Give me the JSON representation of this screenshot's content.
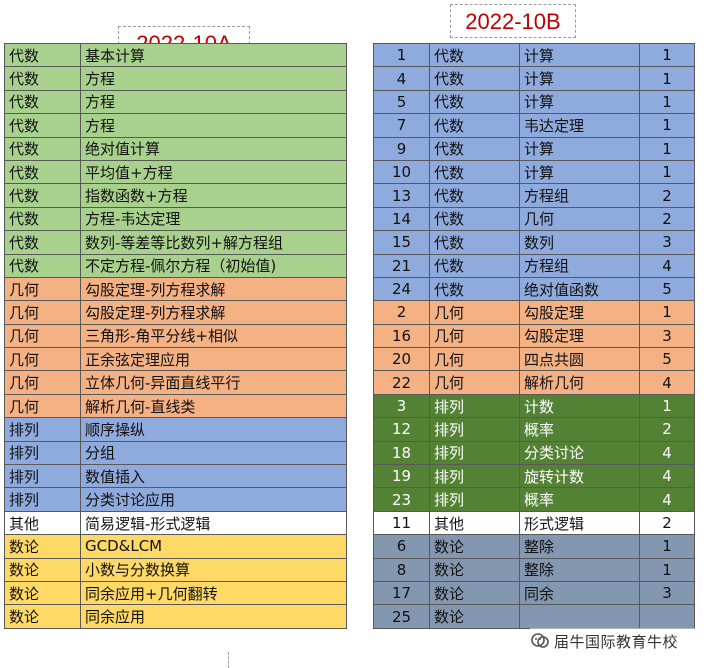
{
  "title_a": "2022-10A",
  "title_b": "2022-10B",
  "watermark": "届牛国际教育牛校",
  "colors": {
    "algebra": "#a9d18e",
    "geometry": "#f4b183",
    "combinatorics": "#8faadc",
    "other": "#ffffff",
    "number_theory": "#ffd966",
    "b_blue": "#8faadc",
    "b_orange": "#f4b183",
    "b_green": "#548235",
    "b_white": "#ffffff",
    "b_slate": "#8497b0"
  },
  "table_a": [
    {
      "cat": "代数",
      "topic": "基本计算",
      "color": "#a9d18e"
    },
    {
      "cat": "代数",
      "topic": "方程",
      "color": "#a9d18e"
    },
    {
      "cat": "代数",
      "topic": "方程",
      "color": "#a9d18e"
    },
    {
      "cat": "代数",
      "topic": "方程",
      "color": "#a9d18e"
    },
    {
      "cat": "代数",
      "topic": "绝对值计算",
      "color": "#a9d18e"
    },
    {
      "cat": "代数",
      "topic": "平均值+方程",
      "color": "#a9d18e"
    },
    {
      "cat": "代数",
      "topic": "指数函数+方程",
      "color": "#a9d18e"
    },
    {
      "cat": "代数",
      "topic": "方程-韦达定理",
      "color": "#a9d18e"
    },
    {
      "cat": "代数",
      "topic": "数列-等差等比数列+解方程组",
      "color": "#a9d18e"
    },
    {
      "cat": "代数",
      "topic": "不定方程-佩尔方程（初始值)",
      "color": "#a9d18e"
    },
    {
      "cat": "几何",
      "topic": "勾股定理-列方程求解",
      "color": "#f4b183"
    },
    {
      "cat": "几何",
      "topic": "勾股定理-列方程求解",
      "color": "#f4b183"
    },
    {
      "cat": "几何",
      "topic": "三角形-角平分线+相似",
      "color": "#f4b183"
    },
    {
      "cat": "几何",
      "topic": "正余弦定理应用",
      "color": "#f4b183"
    },
    {
      "cat": "几何",
      "topic": "立体几何-异面直线平行",
      "color": "#f4b183"
    },
    {
      "cat": "几何",
      "topic": "解析几何-直线类",
      "color": "#f4b183"
    },
    {
      "cat": "排列",
      "topic": "顺序操纵",
      "color": "#8faadc"
    },
    {
      "cat": "排列",
      "topic": "分组",
      "color": "#8faadc"
    },
    {
      "cat": "排列",
      "topic": "数值插入",
      "color": "#8faadc"
    },
    {
      "cat": "排列",
      "topic": "分类讨论应用",
      "color": "#8faadc"
    },
    {
      "cat": "其他",
      "topic": "简易逻辑-形式逻辑",
      "color": "#ffffff"
    },
    {
      "cat": "数论",
      "topic": "GCD&LCM",
      "color": "#ffd966"
    },
    {
      "cat": "数论",
      "topic": "小数与分数换算",
      "color": "#ffd966"
    },
    {
      "cat": "数论",
      "topic": "同余应用+几何翻转",
      "color": "#ffd966"
    },
    {
      "cat": "数论",
      "topic": "同余应用",
      "color": "#ffd966"
    }
  ],
  "table_b": [
    {
      "num": "1",
      "cat": "代数",
      "topic": "计算",
      "level": "1",
      "color": "#8faadc",
      "dark": false
    },
    {
      "num": "4",
      "cat": "代数",
      "topic": "计算",
      "level": "1",
      "color": "#8faadc",
      "dark": false
    },
    {
      "num": "5",
      "cat": "代数",
      "topic": "计算",
      "level": "1",
      "color": "#8faadc",
      "dark": false
    },
    {
      "num": "7",
      "cat": "代数",
      "topic": "韦达定理",
      "level": "1",
      "color": "#8faadc",
      "dark": false
    },
    {
      "num": "9",
      "cat": "代数",
      "topic": "计算",
      "level": "1",
      "color": "#8faadc",
      "dark": false
    },
    {
      "num": "10",
      "cat": "代数",
      "topic": "计算",
      "level": "1",
      "color": "#8faadc",
      "dark": false
    },
    {
      "num": "13",
      "cat": "代数",
      "topic": "方程组",
      "level": "2",
      "color": "#8faadc",
      "dark": false
    },
    {
      "num": "14",
      "cat": "代数",
      "topic": "几何",
      "level": "2",
      "color": "#8faadc",
      "dark": false
    },
    {
      "num": "15",
      "cat": "代数",
      "topic": "数列",
      "level": "3",
      "color": "#8faadc",
      "dark": false
    },
    {
      "num": "21",
      "cat": "代数",
      "topic": "方程组",
      "level": "4",
      "color": "#8faadc",
      "dark": false
    },
    {
      "num": "24",
      "cat": "代数",
      "topic": "绝对值函数",
      "level": "5",
      "color": "#8faadc",
      "dark": false
    },
    {
      "num": "2",
      "cat": "几何",
      "topic": "勾股定理",
      "level": "1",
      "color": "#f4b183",
      "dark": false
    },
    {
      "num": "16",
      "cat": "几何",
      "topic": "勾股定理",
      "level": "3",
      "color": "#f4b183",
      "dark": false
    },
    {
      "num": "20",
      "cat": "几何",
      "topic": "四点共圆",
      "level": "5",
      "color": "#f4b183",
      "dark": false
    },
    {
      "num": "22",
      "cat": "几何",
      "topic": "解析几何",
      "level": "4",
      "color": "#f4b183",
      "dark": false
    },
    {
      "num": "3",
      "cat": "排列",
      "topic": "计数",
      "level": "1",
      "color": "#548235",
      "dark": true
    },
    {
      "num": "12",
      "cat": "排列",
      "topic": "概率",
      "level": "2",
      "color": "#548235",
      "dark": true
    },
    {
      "num": "18",
      "cat": "排列",
      "topic": "分类讨论",
      "level": "4",
      "color": "#548235",
      "dark": true
    },
    {
      "num": "19",
      "cat": "排列",
      "topic": "旋转计数",
      "level": "4",
      "color": "#548235",
      "dark": true
    },
    {
      "num": "23",
      "cat": "排列",
      "topic": "概率",
      "level": "4",
      "color": "#548235",
      "dark": true
    },
    {
      "num": "11",
      "cat": "其他",
      "topic": "形式逻辑",
      "level": "2",
      "color": "#ffffff",
      "dark": false
    },
    {
      "num": "6",
      "cat": "数论",
      "topic": "整除",
      "level": "1",
      "color": "#8497b0",
      "dark": false
    },
    {
      "num": "8",
      "cat": "数论",
      "topic": "整除",
      "level": "1",
      "color": "#8497b0",
      "dark": false
    },
    {
      "num": "17",
      "cat": "数论",
      "topic": "同余",
      "level": "3",
      "color": "#8497b0",
      "dark": false
    },
    {
      "num": "25",
      "cat": "数论",
      "topic": "",
      "level": "",
      "color": "#8497b0",
      "dark": false
    }
  ]
}
